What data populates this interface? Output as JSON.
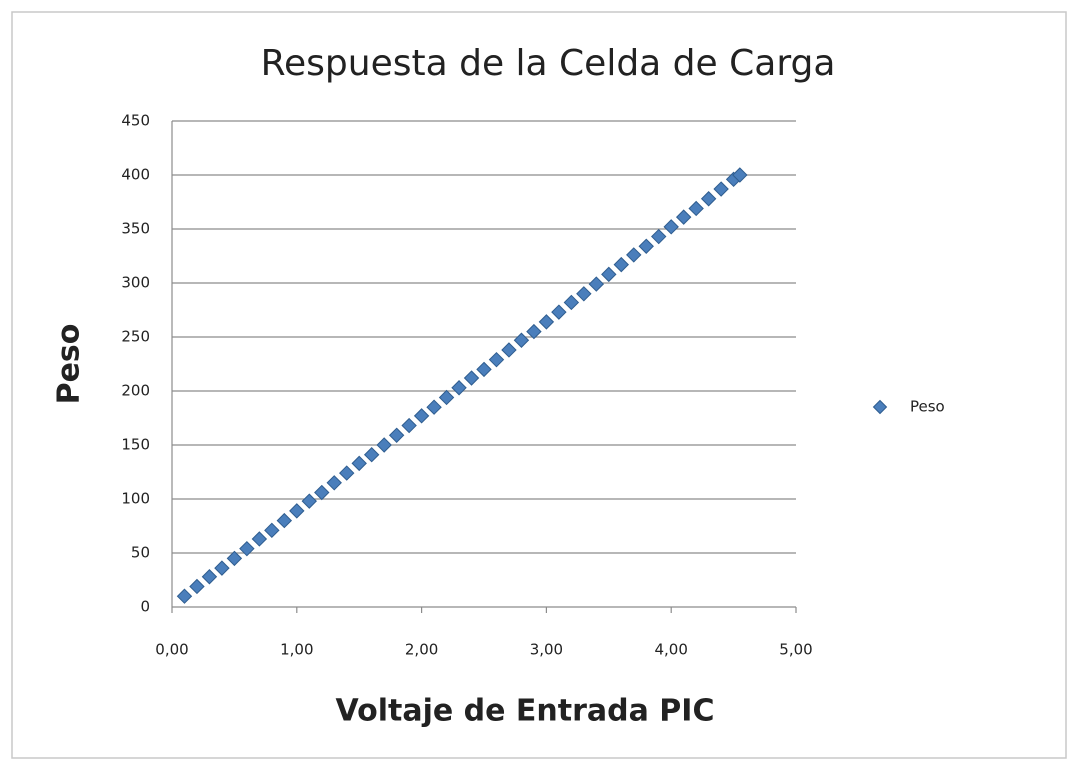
{
  "chart_data": {
    "type": "scatter",
    "title": "Respuesta de la Celda de Carga",
    "x_label": "Voltaje de Entrada PIC",
    "y_label": "Peso",
    "x": [
      0.1,
      0.2,
      0.3,
      0.4,
      0.5,
      0.6,
      0.7,
      0.8,
      0.9,
      1.0,
      1.1,
      1.2,
      1.3,
      1.4,
      1.5,
      1.6,
      1.7,
      1.8,
      1.9,
      2.0,
      2.1,
      2.2,
      2.3,
      2.4,
      2.5,
      2.6,
      2.7,
      2.8,
      2.9,
      3.0,
      3.1,
      3.2,
      3.3,
      3.4,
      3.5,
      3.6,
      3.7,
      3.8,
      3.9,
      4.0,
      4.1,
      4.2,
      4.3,
      4.4,
      4.5,
      4.55
    ],
    "series": [
      {
        "name": "Peso",
        "color": "#4a7ebb",
        "values": [
          10,
          19,
          28,
          36,
          45,
          54,
          63,
          71,
          80,
          89,
          98,
          106,
          115,
          124,
          133,
          141,
          150,
          159,
          168,
          177,
          185,
          194,
          203,
          212,
          220,
          229,
          238,
          247,
          255,
          264,
          273,
          282,
          290,
          299,
          308,
          317,
          326,
          334,
          343,
          352,
          361,
          369,
          378,
          387,
          396,
          400
        ]
      }
    ],
    "xlim": [
      0,
      5
    ],
    "ylim": [
      0,
      450
    ],
    "xticks": [
      {
        "value": 0,
        "label": "0,00"
      },
      {
        "value": 1,
        "label": "1,00"
      },
      {
        "value": 2,
        "label": "2,00"
      },
      {
        "value": 3,
        "label": "3,00"
      },
      {
        "value": 4,
        "label": "4,00"
      },
      {
        "value": 5,
        "label": "5,00"
      }
    ],
    "yticks": [
      0,
      50,
      100,
      150,
      200,
      250,
      300,
      350,
      400,
      450
    ],
    "grid": true,
    "legend": "right"
  }
}
